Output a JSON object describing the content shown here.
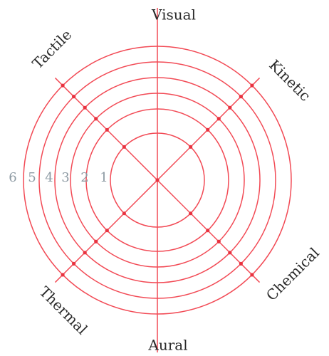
{
  "colors": {
    "ring": "#f24a55",
    "axis": "#f24a55",
    "node": "#e8323f",
    "axis_label": "#2a2a2a",
    "ring_label": "#8d9aa3"
  },
  "axes": [
    {
      "label": "Visual"
    },
    {
      "label": "Kinetic"
    },
    {
      "label": "Chemical"
    },
    {
      "label": "Aural"
    },
    {
      "label": "Thermal"
    },
    {
      "label": "Tactile"
    }
  ],
  "ring_labels": [
    "1",
    "2",
    "3",
    "4",
    "5",
    "6"
  ]
}
